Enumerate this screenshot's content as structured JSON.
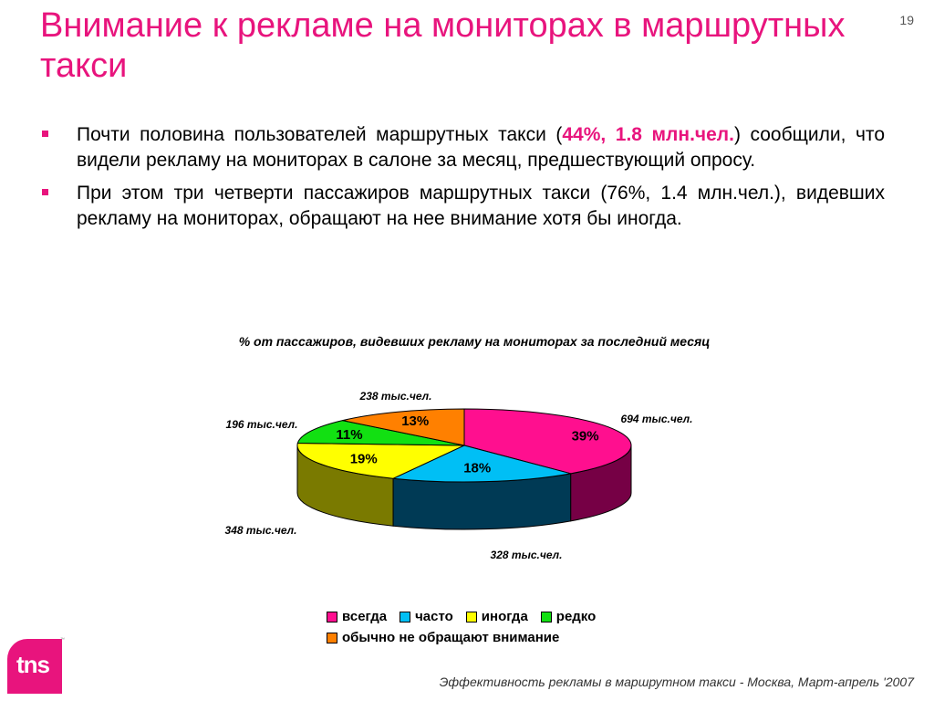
{
  "slide": {
    "title": "Внимание к рекламе на мониторах в маршрутных такси",
    "page_number": "19",
    "footer": "Эффективность рекламы в маршрутном такси - Москва, Март-апрель '2007",
    "logo_text": "tns",
    "logo_tm": "™"
  },
  "bullets": [
    {
      "pre": "Почти половина пользователей маршрутных такси (",
      "highlight": "44%, 1.8 млн.чел.",
      "post": ") сообщили, что видели рекламу на мониторах в салоне за месяц, предшествующий опросу."
    },
    {
      "text": "При этом три четверти пассажиров маршрутных такси (76%, 1.4 млн.чел.), видевших рекламу на мониторах, обращают на нее внимание хотя бы иногда."
    }
  ],
  "chart_data": {
    "type": "pie",
    "title": "% от пассажиров, видевших  рекламу на мониторах за последний месяц",
    "series": [
      {
        "name": "всегда",
        "percent": 39,
        "label": "39%",
        "people": "694 тыс.чел.",
        "color": "#ff0f8f",
        "side_color": "#760045"
      },
      {
        "name": "часто",
        "percent": 18,
        "label": "18%",
        "people": "328 тыс.чел.",
        "color": "#00bff5",
        "side_color": "#003a55"
      },
      {
        "name": "иногда",
        "percent": 19,
        "label": "19%",
        "people": "348 тыс.чел.",
        "color": "#ffff00",
        "side_color": "#7a7a00"
      },
      {
        "name": "редко",
        "percent": 11,
        "label": "11%",
        "people": "196 тыс.чел.",
        "color": "#12e012",
        "side_color": "#0a6b0a"
      },
      {
        "name": "обычно не обращают внимание",
        "percent": 13,
        "label": "13%",
        "people": "238 тыс.чел.",
        "color": "#ff8000",
        "side_color": "#7a3d00"
      }
    ],
    "legend_position": "bottom"
  }
}
